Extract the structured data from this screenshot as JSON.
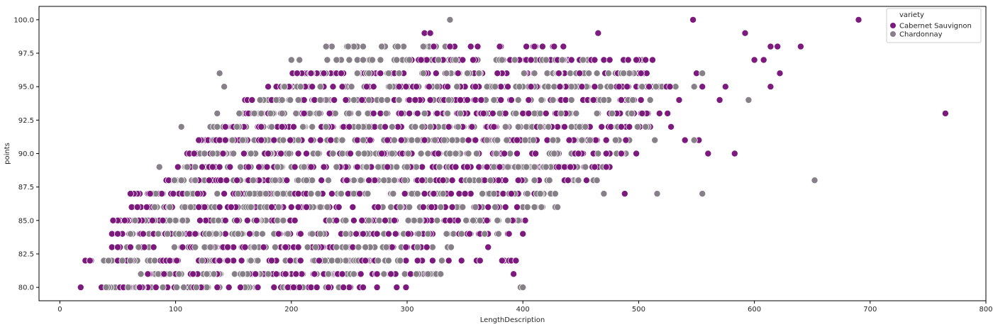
{
  "chart_data": {
    "type": "scatter",
    "xlabel": "LengthDescription",
    "ylabel": "points",
    "xlim": [
      -18,
      800
    ],
    "ylim": [
      79.0,
      101.0
    ],
    "x_ticks": [
      0,
      100,
      200,
      300,
      400,
      500,
      600,
      700,
      800
    ],
    "x_tick_labels": [
      "0",
      "100",
      "200",
      "300",
      "400",
      "500",
      "600",
      "700",
      "800"
    ],
    "y_ticks": [
      80.0,
      82.5,
      85.0,
      87.5,
      90.0,
      92.5,
      95.0,
      97.5,
      100.0
    ],
    "y_tick_labels": [
      "80.0",
      "82.5",
      "85.0",
      "87.5",
      "90.0",
      "92.5",
      "95.0",
      "97.5",
      "100.0"
    ],
    "legend": {
      "title": "variety",
      "placement": "top-right"
    },
    "series": [
      {
        "name": "Cabernet Sauvignon",
        "color": "#7d1a7d",
        "ranges": [
          [
            80,
            18,
            300
          ],
          [
            81,
            75,
            330
          ],
          [
            82,
            25,
            395
          ],
          [
            83,
            45,
            320
          ],
          [
            84,
            40,
            390
          ],
          [
            85,
            45,
            400
          ],
          [
            86,
            60,
            410
          ],
          [
            87,
            60,
            420
          ],
          [
            88,
            90,
            440
          ],
          [
            89,
            100,
            480
          ],
          [
            90,
            110,
            500
          ],
          [
            91,
            120,
            510
          ],
          [
            92,
            140,
            520
          ],
          [
            93,
            150,
            520
          ],
          [
            94,
            160,
            525
          ],
          [
            95,
            180,
            540
          ],
          [
            96,
            200,
            520
          ],
          [
            97,
            300,
            520
          ],
          [
            98,
            320,
            440
          ],
          [
            99,
            315,
            320
          ]
        ],
        "points": [
          [
            18,
            80
          ],
          [
            40,
            80
          ],
          [
            55,
            80
          ],
          [
            22,
            82
          ],
          [
            45,
            83
          ],
          [
            60,
            84
          ],
          [
            60,
            85
          ],
          [
            320,
            99
          ],
          [
            355,
            98
          ],
          [
            410,
            98
          ],
          [
            435,
            98
          ],
          [
            465,
            99
          ],
          [
            547,
            100
          ],
          [
            690,
            100
          ],
          [
            592,
            99
          ],
          [
            614,
            98
          ],
          [
            620,
            98
          ],
          [
            640,
            98
          ],
          [
            600,
            97
          ],
          [
            608,
            97
          ],
          [
            622,
            96
          ],
          [
            614,
            95
          ],
          [
            575,
            95
          ],
          [
            555,
            95
          ],
          [
            550,
            96
          ],
          [
            570,
            94
          ],
          [
            535,
            94
          ],
          [
            765,
            93
          ],
          [
            525,
            93
          ],
          [
            528,
            92
          ],
          [
            508,
            92
          ],
          [
            540,
            91
          ],
          [
            552,
            91
          ],
          [
            560,
            90
          ],
          [
            583,
            90
          ],
          [
            498,
            90
          ],
          [
            488,
            87
          ],
          [
            455,
            88
          ],
          [
            370,
            83
          ],
          [
            390,
            82
          ],
          [
            392,
            81
          ],
          [
            363,
            84
          ],
          [
            388,
            84
          ],
          [
            400,
            84
          ],
          [
            402,
            85
          ],
          [
            320,
            81
          ],
          [
            260,
            81
          ],
          [
            280,
            81
          ]
        ]
      },
      {
        "name": "Chardonnay",
        "color": "#888088",
        "ranges": [
          [
            80,
            38,
            245
          ],
          [
            81,
            65,
            330
          ],
          [
            82,
            38,
            330
          ],
          [
            83,
            55,
            340
          ],
          [
            84,
            60,
            385
          ],
          [
            85,
            65,
            400
          ],
          [
            86,
            80,
            430
          ],
          [
            87,
            80,
            440
          ],
          [
            88,
            95,
            470
          ],
          [
            89,
            105,
            480
          ],
          [
            90,
            115,
            490
          ],
          [
            91,
            125,
            500
          ],
          [
            92,
            130,
            510
          ],
          [
            93,
            155,
            500
          ],
          [
            94,
            170,
            510
          ],
          [
            95,
            185,
            520
          ],
          [
            96,
            200,
            500
          ],
          [
            97,
            220,
            460
          ],
          [
            98,
            230,
            340
          ]
        ],
        "points": [
          [
            38,
            80
          ],
          [
            48,
            80
          ],
          [
            244,
            80
          ],
          [
            398,
            80
          ],
          [
            42,
            82
          ],
          [
            62,
            84
          ],
          [
            86,
            89
          ],
          [
            105,
            92
          ],
          [
            138,
            96
          ],
          [
            142,
            95
          ],
          [
            136,
            93
          ],
          [
            248,
            98
          ],
          [
            235,
            98
          ],
          [
            290,
            98
          ],
          [
            337,
            100
          ],
          [
            555,
            96
          ],
          [
            548,
            95
          ],
          [
            595,
            94
          ],
          [
            652,
            88
          ],
          [
            516,
            87
          ],
          [
            555,
            87
          ],
          [
            470,
            87
          ],
          [
            430,
            86
          ],
          [
            410,
            86
          ],
          [
            400,
            80
          ],
          [
            378,
            85
          ],
          [
            298,
            81
          ],
          [
            268,
            82
          ],
          [
            200,
            97
          ],
          [
            207,
            97
          ],
          [
            503,
            97
          ],
          [
            520,
            95
          ],
          [
            532,
            95
          ],
          [
            548,
            91
          ],
          [
            514,
            91
          ],
          [
            480,
            91
          ]
        ]
      }
    ]
  }
}
